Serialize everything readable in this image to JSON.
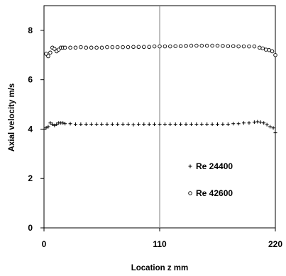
{
  "chart_data": {
    "type": "scatter",
    "title": "",
    "xlabel": "Location z mm",
    "ylabel": "Axial velocity m/s",
    "xlim": [
      0,
      220
    ],
    "ylim": [
      0,
      9
    ],
    "x_ticks": [
      "0",
      "110",
      "220"
    ],
    "y_ticks": [
      "0",
      "2",
      "4",
      "6",
      "8"
    ],
    "grid": "vertical line at x = 110",
    "legend_position": "lower-right inside plot",
    "series": [
      {
        "name": "Re 24400",
        "marker": "plus",
        "color": "#000000",
        "x": [
          0,
          2,
          4,
          6,
          8,
          10,
          12,
          14,
          16,
          18,
          20,
          25,
          30,
          35,
          40,
          45,
          50,
          55,
          60,
          65,
          70,
          75,
          80,
          85,
          90,
          95,
          100,
          105,
          110,
          115,
          120,
          125,
          130,
          135,
          140,
          145,
          150,
          155,
          160,
          165,
          170,
          175,
          180,
          185,
          190,
          195,
          200,
          203,
          206,
          209,
          212,
          215,
          218,
          220
        ],
        "y": [
          4.0,
          4.05,
          4.1,
          4.25,
          4.2,
          4.15,
          4.2,
          4.25,
          4.25,
          4.25,
          4.22,
          4.22,
          4.2,
          4.2,
          4.2,
          4.2,
          4.2,
          4.2,
          4.2,
          4.2,
          4.2,
          4.2,
          4.2,
          4.18,
          4.2,
          4.2,
          4.2,
          4.2,
          4.2,
          4.2,
          4.2,
          4.2,
          4.2,
          4.2,
          4.2,
          4.2,
          4.2,
          4.2,
          4.2,
          4.2,
          4.2,
          4.2,
          4.22,
          4.22,
          4.25,
          4.25,
          4.28,
          4.3,
          4.28,
          4.25,
          4.18,
          4.1,
          4.05,
          3.85
        ]
      },
      {
        "name": "Re 42600",
        "marker": "circle",
        "color": "#000000",
        "x": [
          2,
          4,
          6,
          8,
          10,
          12,
          14,
          16,
          18,
          20,
          25,
          30,
          35,
          40,
          45,
          50,
          55,
          60,
          65,
          70,
          75,
          80,
          85,
          90,
          95,
          100,
          105,
          110,
          115,
          120,
          125,
          130,
          135,
          140,
          145,
          150,
          155,
          160,
          165,
          170,
          175,
          180,
          185,
          190,
          195,
          200,
          205,
          208,
          211,
          214,
          217,
          220
        ],
        "y": [
          7.05,
          6.95,
          7.1,
          7.3,
          7.25,
          7.15,
          7.22,
          7.3,
          7.3,
          7.3,
          7.3,
          7.3,
          7.32,
          7.3,
          7.3,
          7.3,
          7.3,
          7.32,
          7.32,
          7.32,
          7.32,
          7.32,
          7.33,
          7.33,
          7.33,
          7.33,
          7.35,
          7.35,
          7.35,
          7.35,
          7.36,
          7.36,
          7.37,
          7.38,
          7.38,
          7.38,
          7.38,
          7.38,
          7.38,
          7.37,
          7.36,
          7.36,
          7.35,
          7.35,
          7.35,
          7.35,
          7.3,
          7.27,
          7.22,
          7.2,
          7.15,
          7.0
        ]
      }
    ]
  }
}
